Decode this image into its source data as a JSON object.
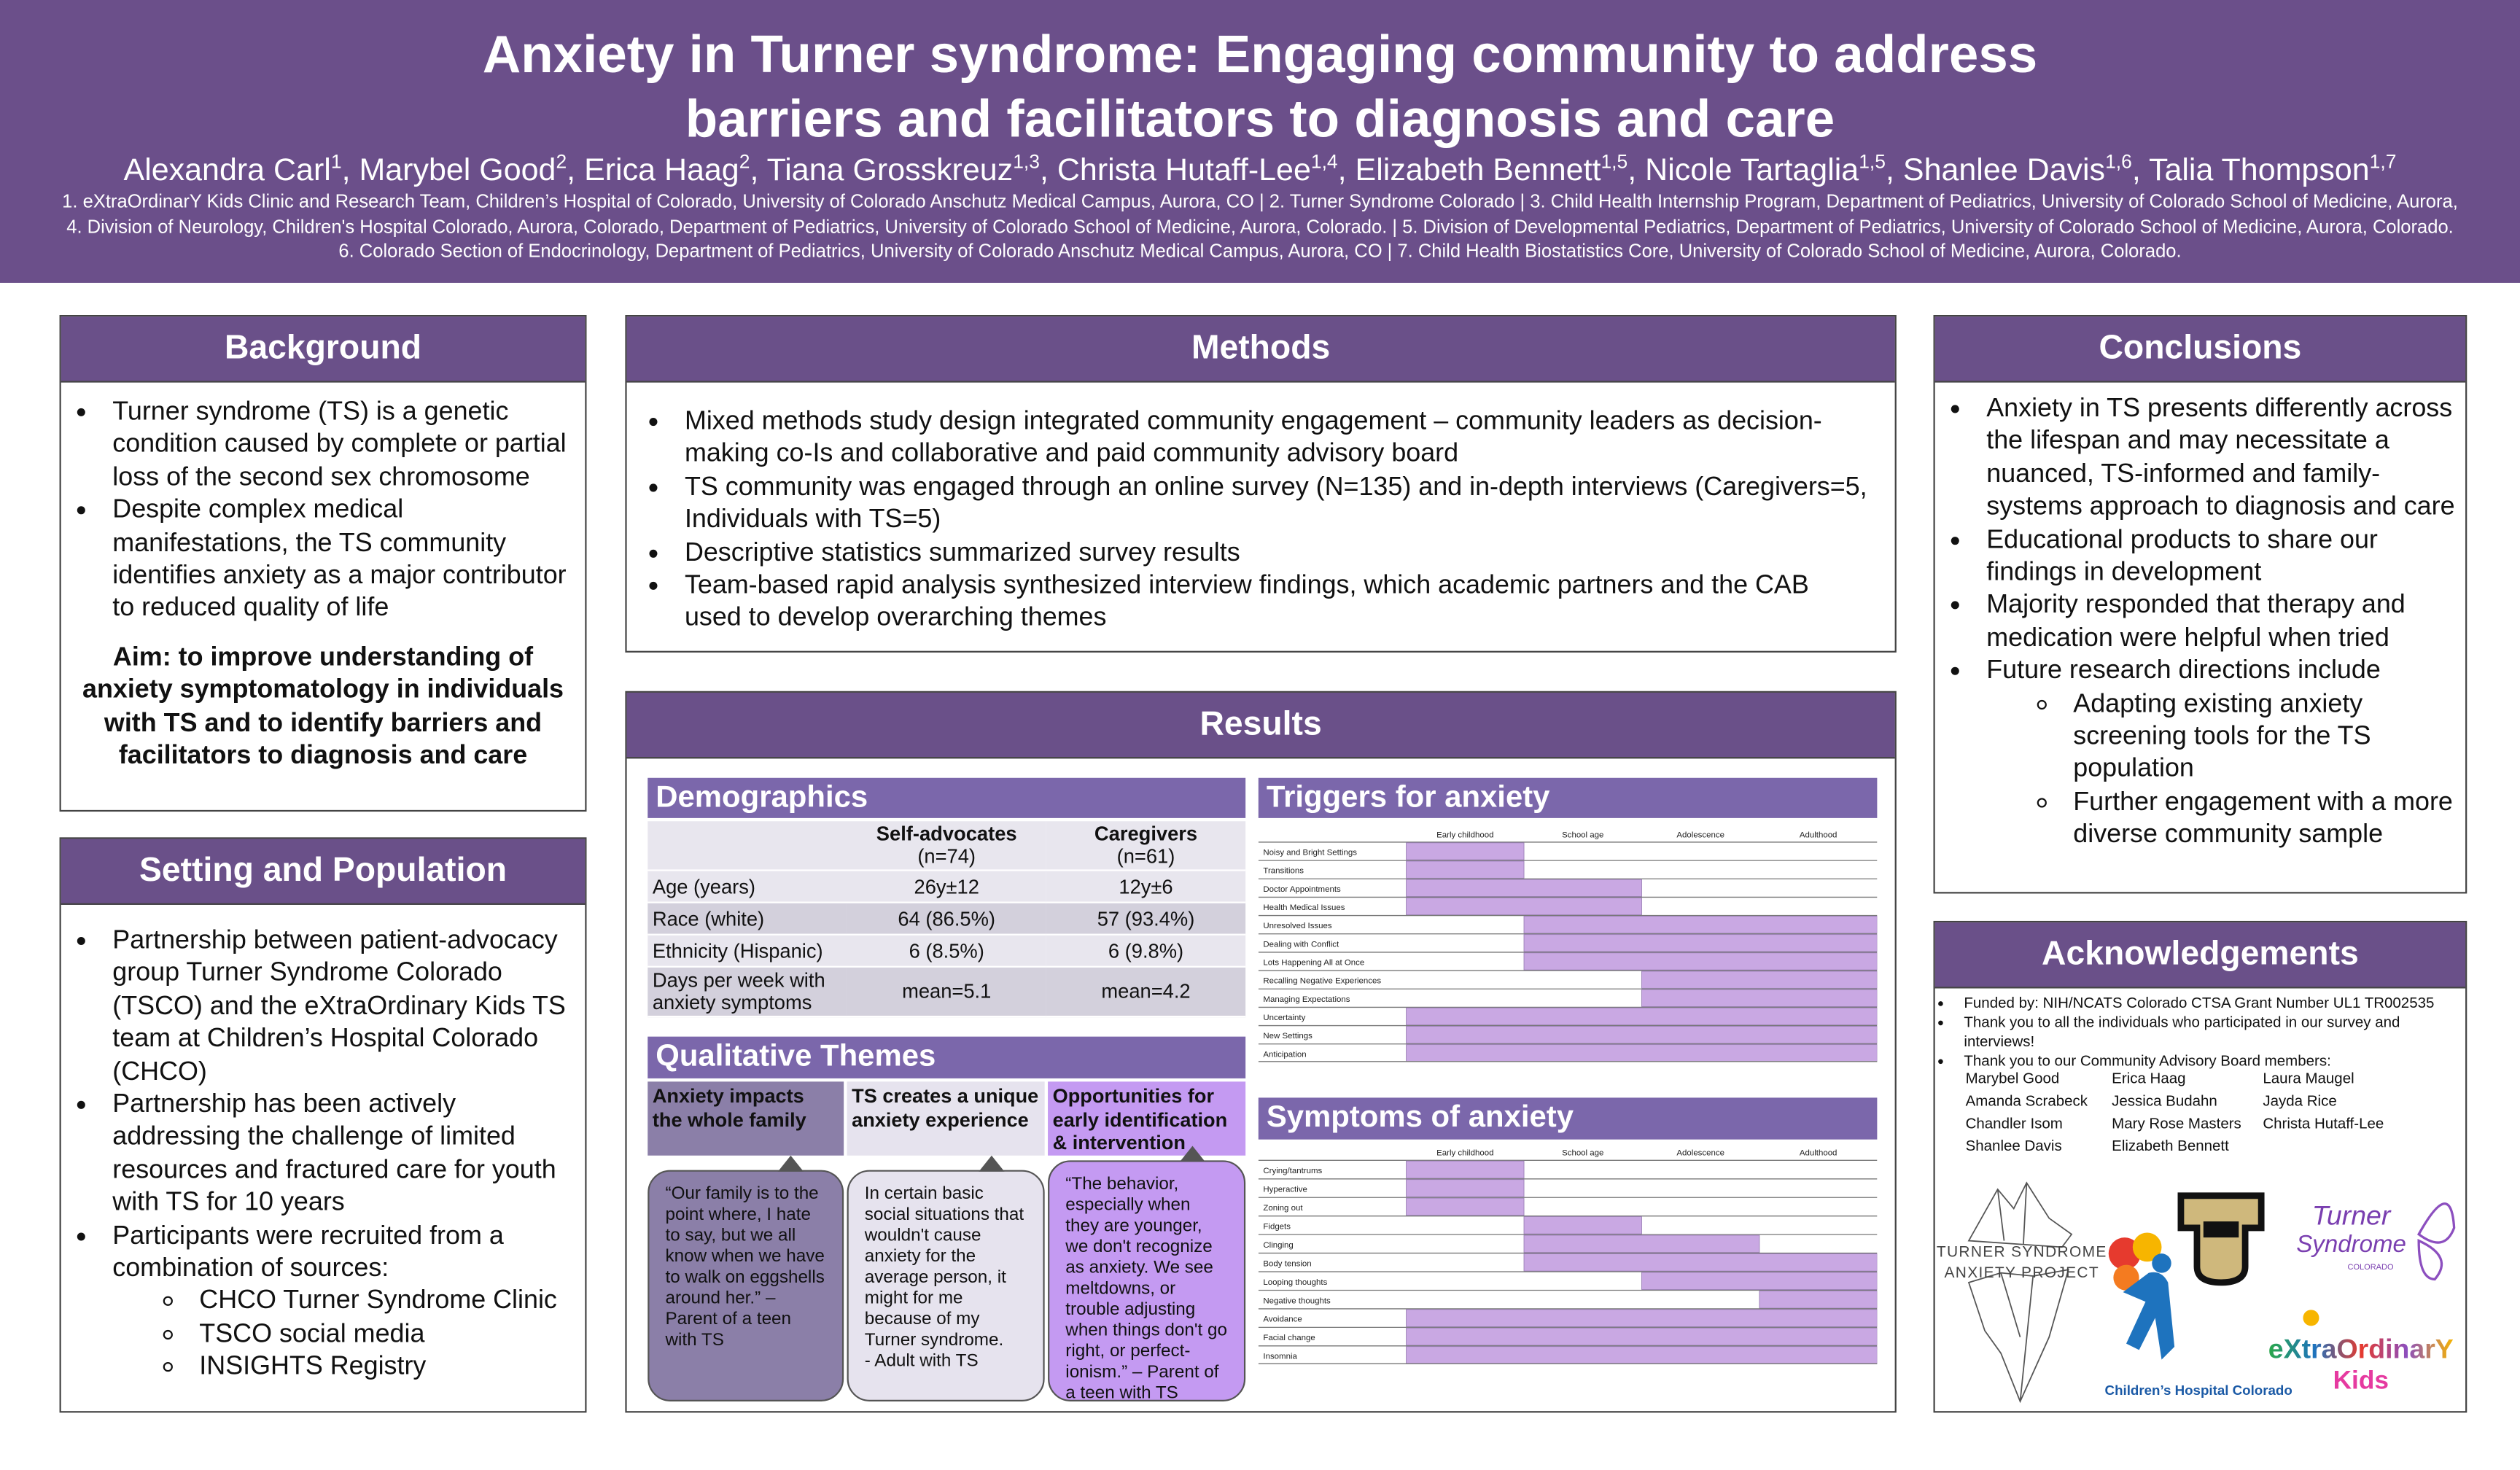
{
  "header": {
    "title_lines": [
      "Anxiety in Turner syndrome: Engaging community to address",
      "barriers and facilitators to diagnosis and care"
    ],
    "authors": [
      {
        "name": "Alexandra Carl",
        "sup": "1",
        "sep": ","
      },
      {
        "name": "Marybel Good",
        "sup": "2",
        "sep": ","
      },
      {
        "name": "Erica Haag",
        "sup": "2",
        "sep": ","
      },
      {
        "name": "Tiana Grosskreuz",
        "sup": "1,3",
        "sep": ","
      },
      {
        "name": "Christa Hutaff-Lee",
        "sup": "1,4",
        "sep": ","
      },
      {
        "name": "Elizabeth Bennett",
        "sup": "1,5",
        "sep": ","
      },
      {
        "name": "Nicole Tartaglia",
        "sup": "1,5",
        "sep": ","
      },
      {
        "name": "Shanlee Davis",
        "sup": "1,6",
        "sep": ","
      },
      {
        "name": "Talia Thompson",
        "sup": "1,7"
      }
    ],
    "affiliations": [
      "1. eXtraOrdinarY Kids Clinic and Research Team, Children’s Hospital of Colorado, University of Colorado Anschutz Medical Campus, Aurora, CO | 2. Turner Syndrome Colorado  | 3. Child Health Internship Program, Department of Pediatrics, University of Colorado School of Medicine, Aurora,",
      "4. Division of Neurology, Children's Hospital Colorado, Aurora, Colorado, Department of Pediatrics, University of Colorado School of Medicine, Aurora, Colorado. | 5. Division of Developmental Pediatrics, Department of Pediatrics, University of Colorado School of Medicine, Aurora, Colorado.",
      "6. Colorado Section of Endocrinology, Department of Pediatrics, University of Colorado Anschutz Medical Campus, Aurora, CO | 7. Child Health Biostatistics Core, University of Colorado School of Medicine, Aurora, Colorado."
    ]
  },
  "background": {
    "heading": "Background",
    "bullets": [
      "Turner syndrome (TS) is a genetic condition caused by complete or partial loss of the second sex chromosome",
      "Despite complex medical manifestations, the TS community identifies anxiety as a major contributor to reduced quality of life"
    ],
    "aim": "Aim: to improve understanding of anxiety symptomatology in individuals with TS and to identify barriers and facilitators to diagnosis and care"
  },
  "setting": {
    "heading": "Setting and Population",
    "bullets": [
      {
        "text": "Partnership between patient-advocacy group Turner Syndrome Colorado (TSCO) and the eXtraOrdinary Kids TS team at Children’s Hospital Colorado (CHCO)"
      },
      {
        "text": "Partnership has been actively addressing the challenge of limited resources and fractured care for youth with TS for 10 years"
      },
      {
        "text": "Participants were recruited from a combination of sources:",
        "sub": [
          "CHCO Turner Syndrome Clinic",
          "TSCO social media",
          "INSIGHTS Registry"
        ]
      }
    ]
  },
  "methods": {
    "heading": "Methods",
    "bullets": [
      "Mixed methods study design integrated community engagement – community leaders as decision-making co-Is and collaborative and paid community advisory board",
      "TS community was engaged through an online survey (N=135) and in-depth interviews (Caregivers=5, Individuals with TS=5)",
      "Descriptive statistics summarized survey results",
      "Team-based rapid analysis synthesized interview findings, which academic partners and the CAB used to develop overarching themes"
    ]
  },
  "results": {
    "heading": "Results",
    "demographics": {
      "heading": "Demographics",
      "columns": [
        {
          "label": "Self-advocates",
          "n": "(n=74)"
        },
        {
          "label": "Caregivers",
          "n": "(n=61)"
        }
      ],
      "rows": [
        {
          "label": "Age (years)",
          "values": [
            "26y±12",
            "12y±6"
          ]
        },
        {
          "label": "Race (white)",
          "values": [
            "64 (86.5%)",
            "57 (93.4%)"
          ]
        },
        {
          "label": "Ethnicity (Hispanic)",
          "values": [
            "6 (8.5%)",
            "6 (9.8%)"
          ]
        },
        {
          "label": "Days per week with anxiety symptoms",
          "values": [
            "mean=5.1",
            "mean=4.2"
          ]
        }
      ]
    },
    "themes": {
      "heading": "Qualitative Themes",
      "items": [
        {
          "title": "Anxiety impacts the whole family",
          "quote": "“Our family is to the point where, I hate to say, but we all know when we have to walk on eggshells around her.” – Parent of a teen with TS"
        },
        {
          "title": "TS creates a unique anxiety experience",
          "quote": "In certain basic social situations that wouldn't cause anxiety for the average person, it might for me because of my Turner syndrome.\n- Adult with TS"
        },
        {
          "title": "Opportunities for early identification & intervention",
          "quote": "“The behavior, especially when they are younger, we don't recognize as anxiety. We see meltdowns, or trouble adjusting when things don't go right, or perfect-ionism.” – Parent of a teen with TS"
        }
      ]
    },
    "triggers": {
      "heading": "Triggers for anxiety",
      "stages": [
        "Early childhood",
        "School age",
        "Adolescence",
        "Adulthood"
      ],
      "rows": [
        {
          "label": "Noisy and Bright Settings",
          "start": 0,
          "end": 1
        },
        {
          "label": "Transitions",
          "start": 0,
          "end": 1
        },
        {
          "label": "Doctor Appointments",
          "start": 0,
          "end": 2
        },
        {
          "label": "Health Medical Issues",
          "start": 0,
          "end": 2
        },
        {
          "label": "Unresolved Issues",
          "start": 1,
          "end": 4
        },
        {
          "label": "Dealing with Conflict",
          "start": 1,
          "end": 4
        },
        {
          "label": "Lots Happening All at Once",
          "start": 1,
          "end": 4
        },
        {
          "label": "Recalling Negative Experiences",
          "start": 2,
          "end": 4
        },
        {
          "label": "Managing Expectations",
          "start": 2,
          "end": 4
        },
        {
          "label": "Uncertainty",
          "start": 0,
          "end": 4
        },
        {
          "label": "New Settings",
          "start": 0,
          "end": 4
        },
        {
          "label": "Anticipation",
          "start": 0,
          "end": 4
        }
      ]
    },
    "symptoms": {
      "heading": "Symptoms of anxiety",
      "stages": [
        "Early childhood",
        "School age",
        "Adolescence",
        "Adulthood"
      ],
      "rows": [
        {
          "label": "Crying/tantrums",
          "start": 0,
          "end": 1
        },
        {
          "label": "Hyperactive",
          "start": 0,
          "end": 1
        },
        {
          "label": "Zoning out",
          "start": 0,
          "end": 1
        },
        {
          "label": "Fidgets",
          "start": 1,
          "end": 2
        },
        {
          "label": "Clinging",
          "start": 1,
          "end": 3
        },
        {
          "label": "Body tension",
          "start": 1,
          "end": 4
        },
        {
          "label": "Looping thoughts",
          "start": 2,
          "end": 4
        },
        {
          "label": "Negative thoughts",
          "start": 3,
          "end": 4
        },
        {
          "label": "Avoidance",
          "start": 0,
          "end": 4
        },
        {
          "label": "Facial change",
          "start": 0,
          "end": 4
        },
        {
          "label": "Insomnia",
          "start": 0,
          "end": 4
        }
      ]
    }
  },
  "conclusions": {
    "heading": "Conclusions",
    "bullets": [
      {
        "text": "Anxiety in TS presents differently across the lifespan and may necessitate a nuanced, TS-informed and family-systems approach to diagnosis and care"
      },
      {
        "text": "Educational products to share our findings in development"
      },
      {
        "text": "Majority responded that therapy and medication were helpful when tried"
      },
      {
        "text": "Future research directions include",
        "sub": [
          "Adapting existing anxiety screening tools for the TS population",
          "Further engagement with a more diverse community sample"
        ]
      }
    ]
  },
  "acknowledgements": {
    "heading": "Acknowledgements",
    "bullets": [
      "Funded by: NIH/NCATS Colorado CTSA Grant Number UL1 TR002535",
      "Thank you to all the individuals who participated in our survey and interviews!",
      "Thank you to our Community Advisory Board members:"
    ],
    "members": [
      "Marybel Good",
      "Erica Haag",
      "Laura Maugel",
      "Amanda Scrabeck",
      "Jessica Budahn",
      "Jayda Rice",
      "Chandler Isom",
      "Mary Rose Masters",
      "Christa Hutaff-Lee",
      "Shanlee Davis",
      "Elizabeth Bennett"
    ],
    "logos": {
      "tsap_1": "TURNER SYNDROME",
      "tsap_2": "ANXIETY PROJECT",
      "tsco_1": "Turner",
      "tsco_2": "Syndrome",
      "tsco_3": "COLORADO",
      "chco": "Children’s Hospital Colorado",
      "xk_1": "eXtraOrdinarY",
      "xk_2": "Kids"
    }
  }
}
